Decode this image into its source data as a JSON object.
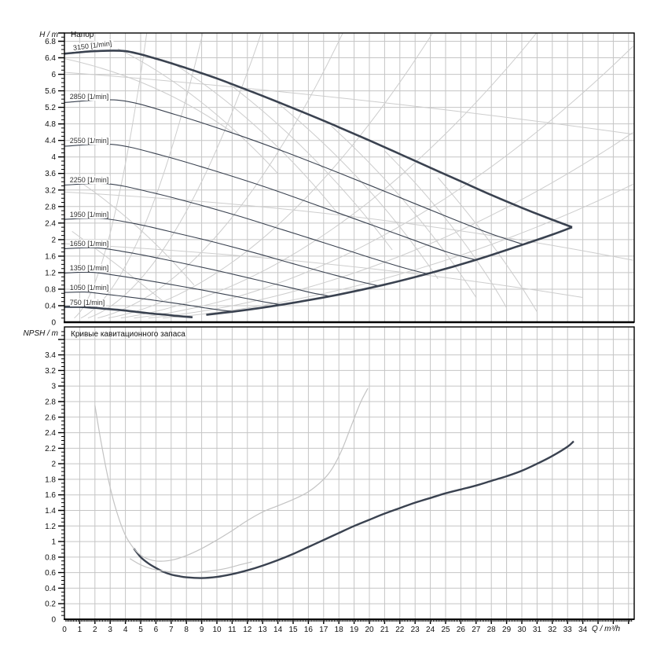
{
  "colors": {
    "bg": "#ffffff",
    "curve_dark": "#3a4250",
    "grid": "#c5c5c5",
    "decor": "#cdcdcd",
    "npsh_gray": "#c3c3c3",
    "frame": "#000000",
    "text": "#111111"
  },
  "labels": {
    "head_title": "Напор",
    "npsh_title": "Кривые кавитационного запаса",
    "y1_label": "H / m",
    "y2_label": "NPSH / m",
    "x_label": "Q / m³/h"
  },
  "chart_data": [
    {
      "type": "line",
      "title": "Напор",
      "ylabel": "H / m",
      "xlabel": "Q / m³/h",
      "xlim": [
        0,
        37.3
      ],
      "ylim": [
        0,
        7.0
      ],
      "x_major": 1,
      "x_minor": 0.1,
      "y_major": 0.4,
      "y_minor": 0.1,
      "grid": true,
      "legend": "none",
      "x_tick_labels": [
        0,
        1,
        2,
        3,
        4,
        5,
        6,
        7,
        8,
        9,
        10,
        11,
        12,
        13,
        14,
        15,
        16,
        17,
        18,
        19,
        20,
        21,
        22,
        23,
        24,
        25,
        26,
        27,
        28,
        29,
        30,
        31,
        32,
        33,
        34
      ],
      "y_tick_labels": [
        "0",
        "0.4",
        "0.8",
        "1.2",
        "1.6",
        "2",
        "2.4",
        "2.8",
        "3.2",
        "3.6",
        "4",
        "4.4",
        "4.8",
        "5.2",
        "5.6",
        "6",
        "6.4",
        "6.8"
      ],
      "series": [
        {
          "name": "3150 [1/min]",
          "rpm": 3150,
          "bold": true,
          "label_at": [
            0.55,
            6.63
          ],
          "label_rot": -7,
          "points": [
            [
              0,
              6.5
            ],
            [
              2,
              6.56
            ],
            [
              4,
              6.56
            ],
            [
              6,
              6.38
            ],
            [
              8,
              6.15
            ],
            [
              10,
              5.9
            ],
            [
              12,
              5.62
            ],
            [
              14,
              5.33
            ],
            [
              16,
              5.03
            ],
            [
              18,
              4.72
            ],
            [
              20,
              4.4
            ],
            [
              22,
              4.07
            ],
            [
              24,
              3.74
            ],
            [
              26,
              3.41
            ],
            [
              28,
              3.08
            ],
            [
              30,
              2.77
            ],
            [
              31.5,
              2.55
            ],
            [
              33.3,
              2.3
            ]
          ]
        },
        {
          "name": "2850 [1/min]",
          "rpm": 2850,
          "bold": false,
          "label_at": [
            0.35,
            5.45
          ],
          "points": [
            [
              0,
              5.32
            ],
            [
              3.62,
              5.37
            ],
            [
              7.24,
              5.03
            ],
            [
              10.86,
              4.6
            ],
            [
              14.48,
              4.12
            ],
            [
              18.1,
              3.6
            ],
            [
              21.72,
              3.06
            ],
            [
              25.33,
              2.52
            ],
            [
              28.05,
              2.13
            ],
            [
              30.13,
              1.88
            ]
          ]
        },
        {
          "name": "2550 [1/min]",
          "rpm": 2550,
          "bold": false,
          "label_at": [
            0.35,
            4.4
          ],
          "points": [
            [
              0,
              4.26
            ],
            [
              3.24,
              4.3
            ],
            [
              6.48,
              4.03
            ],
            [
              9.71,
              3.68
            ],
            [
              12.95,
              3.3
            ],
            [
              16.19,
              2.88
            ],
            [
              19.43,
              2.45
            ],
            [
              22.67,
              2.02
            ],
            [
              25.09,
              1.7
            ],
            [
              26.96,
              1.51
            ]
          ]
        },
        {
          "name": "2250 [1/min]",
          "rpm": 2250,
          "bold": false,
          "label_at": [
            0.35,
            3.45
          ],
          "points": [
            [
              0,
              3.32
            ],
            [
              2.86,
              3.35
            ],
            [
              5.71,
              3.14
            ],
            [
              8.57,
              2.87
            ],
            [
              11.43,
              2.57
            ],
            [
              14.29,
              2.24
            ],
            [
              17.14,
              1.91
            ],
            [
              20,
              1.57
            ],
            [
              22.14,
              1.33
            ],
            [
              23.79,
              1.17
            ]
          ]
        },
        {
          "name": "1950 [1/min]",
          "rpm": 1950,
          "bold": false,
          "label_at": [
            0.35,
            2.6
          ],
          "points": [
            [
              0,
              2.49
            ],
            [
              2.48,
              2.51
            ],
            [
              4.95,
              2.36
            ],
            [
              7.43,
              2.15
            ],
            [
              9.9,
              1.93
            ],
            [
              12.38,
              1.69
            ],
            [
              14.86,
              1.43
            ],
            [
              17.33,
              1.18
            ],
            [
              19.19,
              1.0
            ],
            [
              20.61,
              0.88
            ]
          ]
        },
        {
          "name": "1650 [1/min]",
          "rpm": 1650,
          "bold": false,
          "label_at": [
            0.35,
            1.9
          ],
          "points": [
            [
              0,
              1.78
            ],
            [
              2.1,
              1.8
            ],
            [
              4.19,
              1.69
            ],
            [
              6.29,
              1.54
            ],
            [
              8.38,
              1.38
            ],
            [
              10.48,
              1.21
            ],
            [
              12.57,
              1.03
            ],
            [
              14.67,
              0.85
            ],
            [
              16.24,
              0.71
            ],
            [
              17.44,
              0.63
            ]
          ]
        },
        {
          "name": "1350 [1/min]",
          "rpm": 1350,
          "bold": false,
          "label_at": [
            0.35,
            1.31
          ],
          "points": [
            [
              0,
              1.19
            ],
            [
              1.71,
              1.21
            ],
            [
              3.43,
              1.13
            ],
            [
              5.14,
              1.03
            ],
            [
              6.86,
              0.92
            ],
            [
              8.57,
              0.81
            ],
            [
              10.29,
              0.69
            ],
            [
              12,
              0.57
            ],
            [
              13.29,
              0.48
            ],
            [
              14.27,
              0.42
            ]
          ]
        },
        {
          "name": "1050 [1/min]",
          "rpm": 1050,
          "bold": false,
          "label_at": [
            0.35,
            0.83
          ],
          "points": [
            [
              0,
              0.72
            ],
            [
              1.33,
              0.73
            ],
            [
              2.67,
              0.68
            ],
            [
              4,
              0.62
            ],
            [
              5.33,
              0.56
            ],
            [
              6.67,
              0.49
            ],
            [
              8,
              0.42
            ],
            [
              9.33,
              0.34
            ],
            [
              10.33,
              0.29
            ],
            [
              11.1,
              0.26
            ]
          ]
        },
        {
          "name": "750 [1/min]",
          "rpm": 750,
          "bold": true,
          "label_at": [
            0.35,
            0.48
          ],
          "points": [
            [
              0,
              0.37
            ],
            [
              0.95,
              0.37
            ],
            [
              1.9,
              0.35
            ],
            [
              2.86,
              0.32
            ],
            [
              3.81,
              0.29
            ],
            [
              4.76,
              0.25
            ],
            [
              5.71,
              0.21
            ],
            [
              6.67,
              0.18
            ],
            [
              7.38,
              0.15
            ],
            [
              8.4,
              0.12
            ]
          ]
        },
        {
          "name": "flow-limit-envelope",
          "bold": true,
          "points": [
            [
              9.3,
              0.18
            ],
            [
              12,
              0.3
            ],
            [
              15,
              0.47
            ],
            [
              18,
              0.67
            ],
            [
              21,
              0.91
            ],
            [
              24,
              1.19
            ],
            [
              27,
              1.51
            ],
            [
              30,
              1.87
            ],
            [
              32,
              2.12
            ],
            [
              33.3,
              2.3
            ]
          ]
        }
      ],
      "decor": {
        "rising_parabola_coeffs": [
          0.24,
          0.085,
          0.042,
          0.021,
          0.012,
          0.0073,
          0.0048,
          0.0033,
          0.0024
        ],
        "arcs": [
          [
            0,
            6.38,
            6,
            5.9,
            11,
            4.6
          ],
          [
            3.5,
            6.62,
            9,
            5.6,
            14,
            3.6
          ],
          [
            7,
            6.3,
            13,
            4.9,
            18,
            2.6
          ],
          [
            10.5,
            5.85,
            16.5,
            4.2,
            21.5,
            1.75
          ],
          [
            14,
            5.3,
            20,
            3.5,
            24.5,
            1.05
          ],
          [
            17.5,
            4.75,
            23,
            2.9,
            27,
            0.6
          ],
          [
            21,
            4.15,
            26,
            2.3,
            29,
            0.35
          ],
          [
            24.5,
            3.5,
            28.5,
            1.8,
            31,
            0.25
          ],
          [
            1,
            3.4,
            5,
            2.4,
            8.5,
            0.9
          ],
          [
            0.5,
            2.2,
            3.5,
            1.4,
            6.5,
            0.5
          ]
        ],
        "long_lines": [
          [
            0,
            6.05,
            19,
            5.5,
            37.3,
            4.55
          ],
          [
            0,
            3.15,
            20,
            2.75,
            37.3,
            1.5
          ],
          [
            0,
            1.9,
            18,
            1.55,
            34,
            0.6
          ]
        ]
      }
    },
    {
      "type": "line",
      "title": "Кривые кавитационного запаса",
      "ylabel": "NPSH / m",
      "xlabel": "Q / m³/h",
      "xlim": [
        0,
        37.3
      ],
      "ylim": [
        0,
        3.76
      ],
      "x_major": 1,
      "x_minor": 0.1,
      "y_major": 0.2,
      "y_minor": 0.05,
      "grid": true,
      "legend": "none",
      "y_tick_labels": [
        "0",
        "0.2",
        "0.4",
        "0.6",
        "0.8",
        "1",
        "1.2",
        "1.4",
        "1.6",
        "1.8",
        "2",
        "2.2",
        "2.4",
        "2.6",
        "2.8",
        "3",
        "3.2",
        "3.4"
      ],
      "series": [
        {
          "name": "NPSH",
          "bold": true,
          "gray": false,
          "points": [
            [
              4.55,
              0.91
            ],
            [
              5,
              0.8
            ],
            [
              5.5,
              0.72
            ],
            [
              6,
              0.66
            ],
            [
              6.5,
              0.61
            ],
            [
              7,
              0.575
            ],
            [
              7.5,
              0.555
            ],
            [
              8,
              0.54
            ],
            [
              9,
              0.53
            ],
            [
              10,
              0.545
            ],
            [
              11,
              0.58
            ],
            [
              12,
              0.63
            ],
            [
              13,
              0.69
            ],
            [
              14,
              0.76
            ],
            [
              15,
              0.84
            ],
            [
              16,
              0.93
            ],
            [
              17,
              1.02
            ],
            [
              18,
              1.11
            ],
            [
              19,
              1.2
            ],
            [
              20,
              1.28
            ],
            [
              21,
              1.36
            ],
            [
              22,
              1.43
            ],
            [
              23,
              1.5
            ],
            [
              24,
              1.56
            ],
            [
              25,
              1.62
            ],
            [
              26,
              1.67
            ],
            [
              27,
              1.72
            ],
            [
              28,
              1.78
            ],
            [
              29,
              1.84
            ],
            [
              30,
              1.91
            ],
            [
              31,
              2.0
            ],
            [
              32,
              2.1
            ],
            [
              33,
              2.22
            ],
            [
              33.4,
              2.29
            ]
          ]
        },
        {
          "name": "npsh-aux-1",
          "bold": false,
          "gray": true,
          "points": [
            [
              2,
              2.75
            ],
            [
              2.4,
              2.28
            ],
            [
              2.9,
              1.78
            ],
            [
              3.4,
              1.4
            ],
            [
              4,
              1.08
            ],
            [
              4.6,
              0.9
            ],
            [
              5.2,
              0.8
            ],
            [
              6,
              0.75
            ],
            [
              7,
              0.76
            ],
            [
              8,
              0.82
            ],
            [
              9,
              0.91
            ],
            [
              10,
              1.02
            ],
            [
              11,
              1.14
            ],
            [
              12,
              1.27
            ],
            [
              13,
              1.38
            ],
            [
              14,
              1.46
            ],
            [
              15,
              1.54
            ],
            [
              16,
              1.64
            ],
            [
              17,
              1.8
            ],
            [
              17.6,
              1.95
            ],
            [
              18.2,
              2.18
            ],
            [
              18.8,
              2.48
            ],
            [
              19.4,
              2.78
            ],
            [
              19.9,
              2.97
            ]
          ]
        },
        {
          "name": "npsh-aux-2",
          "bold": false,
          "gray": true,
          "points": [
            [
              4.3,
              0.78
            ],
            [
              5,
              0.7
            ],
            [
              5.7,
              0.65
            ],
            [
              6.5,
              0.62
            ],
            [
              7.5,
              0.6
            ],
            [
              8.5,
              0.6
            ],
            [
              9.5,
              0.62
            ],
            [
              10.5,
              0.65
            ],
            [
              11.5,
              0.7
            ],
            [
              12.3,
              0.74
            ]
          ]
        }
      ]
    }
  ]
}
